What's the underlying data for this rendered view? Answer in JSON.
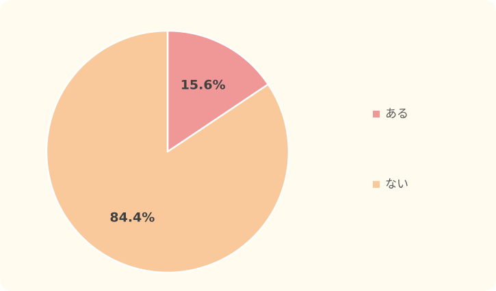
{
  "background": "#fffcef",
  "chart_data": {
    "type": "pie",
    "title": "",
    "categories": [
      "ある",
      "ない"
    ],
    "values": [
      15.6,
      84.4
    ],
    "labels": [
      "15.6%",
      "84.4%"
    ],
    "colors": [
      "#f09798",
      "#f9c99b"
    ],
    "start_angle_deg": 0,
    "direction": "clockwise",
    "slice_border_color": "#ffffff",
    "legend_position": "right"
  }
}
